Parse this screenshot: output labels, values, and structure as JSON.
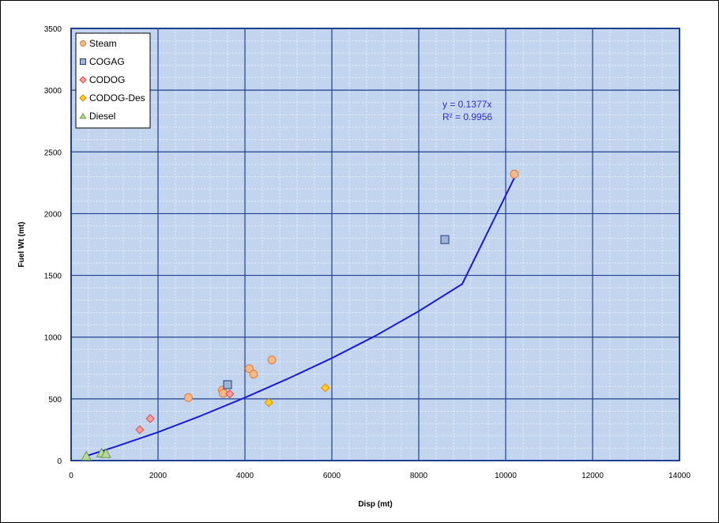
{
  "chart_data": {
    "type": "scatter",
    "title": "",
    "xlabel": "Disp (mt)",
    "ylabel": "Fuel Wt (mt)",
    "xlim": [
      0,
      14000
    ],
    "ylim": [
      0,
      3500
    ],
    "x_ticks": [
      "0",
      "2000",
      "4000",
      "6000",
      "8000",
      "10000",
      "12000",
      "14000"
    ],
    "y_ticks": [
      "0",
      "500",
      "1000",
      "1500",
      "2000",
      "2500",
      "3000",
      "3500"
    ],
    "grid": true,
    "legend_position": "top-left",
    "series": [
      {
        "name": "Steam",
        "marker": "circle",
        "color": "#f5b98a",
        "edge": "#e07a3a",
        "points": [
          [
            2700,
            510
          ],
          [
            3480,
            570
          ],
          [
            3500,
            545
          ],
          [
            4100,
            745
          ],
          [
            4200,
            700
          ],
          [
            4620,
            815
          ],
          [
            10200,
            2320
          ]
        ]
      },
      {
        "name": "COGAG",
        "marker": "square",
        "color": "#9fb4d8",
        "edge": "#1f3f7f",
        "points": [
          [
            3600,
            615
          ],
          [
            8600,
            1790
          ]
        ]
      },
      {
        "name": "CODOG",
        "marker": "diamond",
        "color": "#f7a0a0",
        "edge": "#e04848",
        "points": [
          [
            1580,
            250
          ],
          [
            1820,
            340
          ],
          [
            3650,
            540
          ]
        ]
      },
      {
        "name": "CODOG-Des",
        "marker": "diamond",
        "color": "#ffd21f",
        "edge": "#e88000",
        "points": [
          [
            4550,
            470
          ],
          [
            5850,
            590
          ]
        ]
      },
      {
        "name": "Diesel",
        "marker": "triangle",
        "color": "#b8d8a0",
        "edge": "#6a9a40",
        "points": [
          [
            350,
            35
          ],
          [
            700,
            60
          ],
          [
            800,
            55
          ]
        ]
      }
    ],
    "trendline": {
      "color": "#1a1ad9",
      "x_from": 330,
      "x_to": 10200,
      "points": [
        [
          330,
          35
        ],
        [
          1000,
          110
        ],
        [
          2000,
          230
        ],
        [
          3000,
          365
        ],
        [
          4000,
          510
        ],
        [
          5000,
          665
        ],
        [
          6000,
          830
        ],
        [
          7000,
          1010
        ],
        [
          8000,
          1210
        ],
        [
          9000,
          1430
        ],
        [
          10200,
          2290
        ]
      ],
      "equation": "y = 0.1377x",
      "r2": "R² = 0.9956"
    },
    "colors": {
      "plot_bg": "#c3d5ee",
      "major_grid": "#1f3f8f",
      "minor_grid": "#eaf0f8"
    }
  }
}
